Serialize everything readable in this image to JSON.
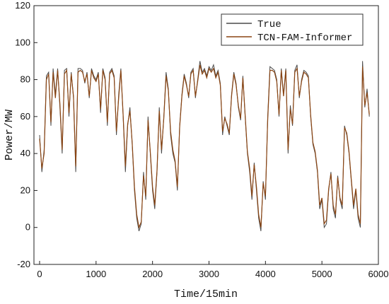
{
  "chart_data": {
    "type": "line",
    "xlabel": "Time/15min",
    "ylabel": "Power/MW",
    "xlim": [
      -100,
      6000
    ],
    "ylim": [
      -20,
      120
    ],
    "xticks": [
      0,
      1000,
      2000,
      3000,
      4000,
      5000,
      6000
    ],
    "yticks": [
      -20,
      0,
      20,
      40,
      60,
      80,
      100,
      120
    ],
    "grid": false,
    "legend_position": "top-right",
    "series": [
      {
        "name": "True",
        "color": "#4a4a4a",
        "x": [
          0,
          40,
          80,
          120,
          160,
          200,
          240,
          280,
          320,
          360,
          400,
          440,
          480,
          520,
          560,
          600,
          640,
          680,
          720,
          760,
          800,
          840,
          880,
          920,
          960,
          1000,
          1040,
          1080,
          1120,
          1160,
          1200,
          1240,
          1280,
          1320,
          1360,
          1400,
          1440,
          1480,
          1520,
          1560,
          1600,
          1640,
          1680,
          1720,
          1760,
          1800,
          1840,
          1880,
          1920,
          1960,
          2000,
          2040,
          2080,
          2120,
          2160,
          2200,
          2240,
          2280,
          2320,
          2360,
          2400,
          2440,
          2480,
          2520,
          2560,
          2600,
          2640,
          2680,
          2720,
          2760,
          2800,
          2840,
          2880,
          2920,
          2960,
          3000,
          3040,
          3080,
          3120,
          3160,
          3200,
          3240,
          3280,
          3320,
          3360,
          3400,
          3440,
          3480,
          3520,
          3560,
          3600,
          3640,
          3680,
          3720,
          3760,
          3800,
          3840,
          3880,
          3920,
          3960,
          4000,
          4040,
          4080,
          4120,
          4160,
          4200,
          4240,
          4280,
          4320,
          4360,
          4400,
          4440,
          4480,
          4520,
          4560,
          4600,
          4640,
          4680,
          4720,
          4760,
          4800,
          4840,
          4880,
          4920,
          4960,
          5000,
          5040,
          5080,
          5120,
          5160,
          5200,
          5240,
          5280,
          5320,
          5360,
          5400,
          5440,
          5480,
          5520,
          5560,
          5600,
          5640,
          5680,
          5720,
          5760,
          5800,
          5840
        ],
        "values": [
          50,
          30,
          42,
          82,
          84,
          55,
          86,
          72,
          86,
          65,
          40,
          85,
          86,
          60,
          84,
          70,
          30,
          86,
          86,
          85,
          78,
          84,
          70,
          86,
          82,
          80,
          84,
          62,
          86,
          81,
          55,
          84,
          86,
          82,
          50,
          72,
          86,
          60,
          30,
          55,
          65,
          45,
          20,
          5,
          -2,
          2,
          30,
          15,
          60,
          40,
          20,
          10,
          30,
          65,
          40,
          60,
          84,
          75,
          50,
          40,
          35,
          20,
          55,
          72,
          83,
          78,
          70,
          84,
          86,
          70,
          80,
          90,
          84,
          86,
          82,
          87,
          85,
          88,
          82,
          85,
          78,
          50,
          60,
          55,
          50,
          72,
          84,
          78,
          65,
          58,
          82,
          60,
          40,
          30,
          15,
          35,
          20,
          5,
          -2,
          25,
          15,
          60,
          87,
          86,
          85,
          80,
          60,
          86,
          72,
          86,
          40,
          66,
          55,
          85,
          88,
          70,
          80,
          85,
          84,
          82,
          60,
          45,
          40,
          30,
          10,
          15,
          0,
          2,
          20,
          30,
          10,
          5,
          28,
          15,
          10,
          55,
          50,
          40,
          25,
          10,
          20,
          5,
          0,
          90,
          65,
          75,
          60
        ]
      },
      {
        "name": "TCN-FAM-Informer",
        "color": "#8b4513",
        "x": [
          0,
          40,
          80,
          120,
          160,
          200,
          240,
          280,
          320,
          360,
          400,
          440,
          480,
          520,
          560,
          600,
          640,
          680,
          720,
          760,
          800,
          840,
          880,
          920,
          960,
          1000,
          1040,
          1080,
          1120,
          1160,
          1200,
          1240,
          1280,
          1320,
          1360,
          1400,
          1440,
          1480,
          1520,
          1560,
          1600,
          1640,
          1680,
          1720,
          1760,
          1800,
          1840,
          1880,
          1920,
          1960,
          2000,
          2040,
          2080,
          2120,
          2160,
          2200,
          2240,
          2280,
          2320,
          2360,
          2400,
          2440,
          2480,
          2520,
          2560,
          2600,
          2640,
          2680,
          2720,
          2760,
          2800,
          2840,
          2880,
          2920,
          2960,
          3000,
          3040,
          3080,
          3120,
          3160,
          3200,
          3240,
          3280,
          3320,
          3360,
          3400,
          3440,
          3480,
          3520,
          3560,
          3600,
          3640,
          3680,
          3720,
          3760,
          3800,
          3840,
          3880,
          3920,
          3960,
          4000,
          4040,
          4080,
          4120,
          4160,
          4200,
          4240,
          4280,
          4320,
          4360,
          4400,
          4440,
          4480,
          4520,
          4560,
          4600,
          4640,
          4680,
          4720,
          4760,
          4800,
          4840,
          4880,
          4920,
          4960,
          5000,
          5040,
          5080,
          5120,
          5160,
          5200,
          5240,
          5280,
          5320,
          5360,
          5400,
          5440,
          5480,
          5520,
          5560,
          5600,
          5640,
          5680,
          5720,
          5760,
          5800,
          5840
        ],
        "values": [
          48,
          32,
          40,
          80,
          83,
          57,
          84,
          70,
          85,
          67,
          42,
          83,
          85,
          62,
          83,
          71,
          33,
          84,
          85,
          84,
          79,
          83,
          71,
          85,
          81,
          79,
          83,
          64,
          85,
          80,
          57,
          83,
          85,
          81,
          52,
          70,
          85,
          61,
          33,
          56,
          63,
          46,
          22,
          7,
          0,
          3,
          28,
          17,
          58,
          41,
          22,
          12,
          31,
          63,
          42,
          59,
          82,
          74,
          52,
          42,
          36,
          22,
          54,
          71,
          82,
          77,
          71,
          83,
          85,
          71,
          79,
          88,
          83,
          85,
          81,
          86,
          84,
          86,
          81,
          84,
          77,
          52,
          59,
          56,
          51,
          71,
          83,
          77,
          66,
          59,
          81,
          61,
          41,
          32,
          17,
          34,
          22,
          7,
          0,
          24,
          17,
          58,
          85,
          85,
          84,
          79,
          61,
          85,
          71,
          85,
          42,
          64,
          56,
          84,
          86,
          71,
          79,
          84,
          83,
          81,
          61,
          46,
          41,
          31,
          12,
          16,
          2,
          4,
          21,
          29,
          12,
          7,
          27,
          16,
          12,
          54,
          51,
          41,
          26,
          12,
          21,
          7,
          2,
          87,
          66,
          73,
          61
        ]
      }
    ]
  }
}
